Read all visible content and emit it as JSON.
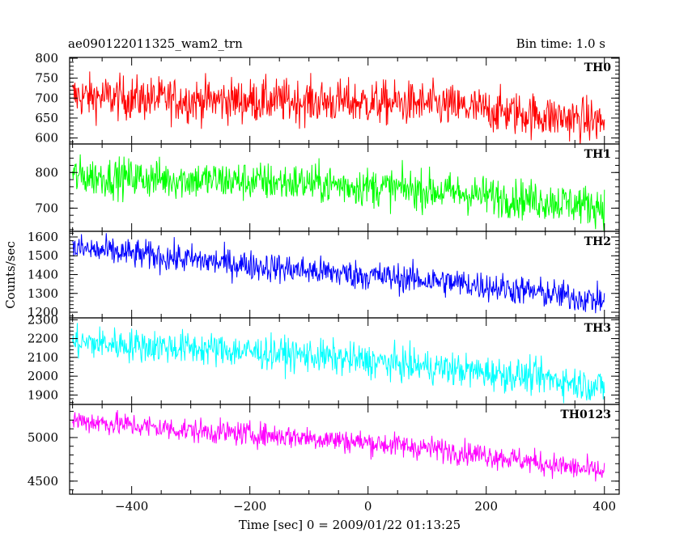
{
  "chart_data": {
    "type": "line",
    "title_left": "ae090122011325_wam2_trn",
    "title_right": "Bin time: 1.0 s",
    "xlabel": "Time [sec] 0 = 2009/01/22 01:13:25",
    "ylabel": "Counts/sec",
    "xlim": [
      -505,
      425
    ],
    "x_range": [
      -500,
      400
    ],
    "x_ticks": [
      -400,
      -200,
      0,
      200,
      400
    ],
    "bin_time_s": 1.0,
    "grid": false,
    "panels": [
      {
        "name": "TH0",
        "color": "#ff0000",
        "ylim": [
          585,
          802
        ],
        "y_ticks": [
          600,
          650,
          700,
          750,
          800
        ],
        "trend": [
          [
            -500,
            705
          ],
          [
            -300,
            695
          ],
          [
            -100,
            692
          ],
          [
            100,
            685
          ],
          [
            200,
            670
          ],
          [
            300,
            655
          ],
          [
            400,
            640
          ]
        ],
        "scatter": 28
      },
      {
        "name": "TH1",
        "color": "#00ff00",
        "ylim": [
          635,
          880
        ],
        "y_ticks": [
          700,
          800
        ],
        "trend": [
          [
            -500,
            790
          ],
          [
            -300,
            780
          ],
          [
            -100,
            770
          ],
          [
            100,
            750
          ],
          [
            200,
            735
          ],
          [
            300,
            720
          ],
          [
            400,
            705
          ]
        ],
        "scatter": 28
      },
      {
        "name": "TH2",
        "color": "#0000ff",
        "ylim": [
          1170,
          1630
        ],
        "y_ticks": [
          1200,
          1300,
          1400,
          1500,
          1600
        ],
        "trend": [
          [
            -500,
            1540
          ],
          [
            -300,
            1480
          ],
          [
            -100,
            1420
          ],
          [
            100,
            1370
          ],
          [
            200,
            1340
          ],
          [
            300,
            1300
          ],
          [
            400,
            1260
          ]
        ],
        "scatter": 40
      },
      {
        "name": "TH3",
        "color": "#00ffff",
        "ylim": [
          1850,
          2310
        ],
        "y_ticks": [
          1900,
          2000,
          2100,
          2200,
          2300
        ],
        "trend": [
          [
            -500,
            2180
          ],
          [
            -300,
            2150
          ],
          [
            -100,
            2110
          ],
          [
            100,
            2050
          ],
          [
            200,
            2020
          ],
          [
            300,
            1990
          ],
          [
            400,
            1940
          ]
        ],
        "scatter": 45
      },
      {
        "name": "TH0123",
        "color": "#ff00ff",
        "ylim": [
          4350,
          5380
        ],
        "y_ticks": [
          4500,
          5000
        ],
        "trend": [
          [
            -500,
            5200
          ],
          [
            -300,
            5080
          ],
          [
            -100,
            5000
          ],
          [
            100,
            4880
          ],
          [
            200,
            4800
          ],
          [
            300,
            4700
          ],
          [
            400,
            4600
          ]
        ],
        "scatter": 70
      }
    ]
  }
}
